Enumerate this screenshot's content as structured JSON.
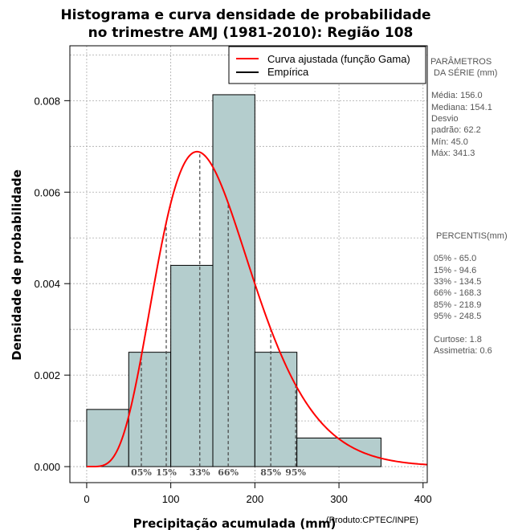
{
  "chart_data": {
    "type": "bar",
    "title_line1": "Histograma e curva densidade de probabilidade",
    "title_line2": "no trimestre AMJ (1981-2010): Região 108",
    "xlabel": "Precipitação acumulada (mm)",
    "ylabel": "Densidade de probabilidade",
    "credit": "(Produto:CPTEC/INPE)",
    "xlim": [
      -20,
      405
    ],
    "ylim": [
      -0.00035,
      0.0092
    ],
    "x_ticks": [
      0,
      100,
      200,
      300,
      400
    ],
    "x_tick_labels": [
      "0",
      "100",
      "200",
      "300",
      "400"
    ],
    "y_ticks": [
      0.0,
      0.002,
      0.004,
      0.006,
      0.008
    ],
    "y_tick_labels": [
      "0.000",
      "0.002",
      "0.004",
      "0.006",
      "0.008"
    ],
    "grid": true,
    "bins": [
      {
        "x0": 0,
        "x1": 50,
        "density": 0.00125
      },
      {
        "x0": 50,
        "x1": 100,
        "density": 0.0025
      },
      {
        "x0": 100,
        "x1": 150,
        "density": 0.0044
      },
      {
        "x0": 150,
        "x1": 200,
        "density": 0.00813
      },
      {
        "x0": 200,
        "x1": 250,
        "density": 0.0025
      },
      {
        "x0": 250,
        "x1": 350,
        "density": 0.000625
      }
    ],
    "bar_color": "#b4cdcd",
    "curve_color": "#ff0000",
    "gamma_fit": {
      "shape": 6.29,
      "scale": 24.8
    },
    "legend": [
      {
        "label": "Curva ajustada (função Gama)",
        "color": "#ff0000"
      },
      {
        "label": "Empírica",
        "color": "#000000"
      }
    ],
    "percentile_lines": [
      {
        "label": "05%",
        "x": 65.0
      },
      {
        "label": "15%",
        "x": 94.6
      },
      {
        "label": "33%",
        "x": 134.5
      },
      {
        "label": "66%",
        "x": 168.3
      },
      {
        "label": "85%",
        "x": 218.9
      },
      {
        "label": "95%",
        "x": 248.5
      }
    ],
    "side_panel": {
      "params_title_1": "PARÂMETROS",
      "params_title_2": "DA SÉRIE (mm)",
      "params_lines": [
        "Média:  156.0",
        "Mediana:  154.1",
        "Desvio",
        "padrão:  62.2",
        "Mín:  45.0",
        "Máx:  341.3"
      ],
      "percentis_title": "PERCENTIS(mm)",
      "percentis_lines": [
        "05% -   65.0",
        "15% -   94.6",
        "33% -   134.5",
        "66% -   168.3",
        "85% -   218.9",
        "95% -   248.5"
      ],
      "stats_lines": [
        "Curtose:  1.8",
        "Assimetria:  0.6"
      ]
    }
  }
}
